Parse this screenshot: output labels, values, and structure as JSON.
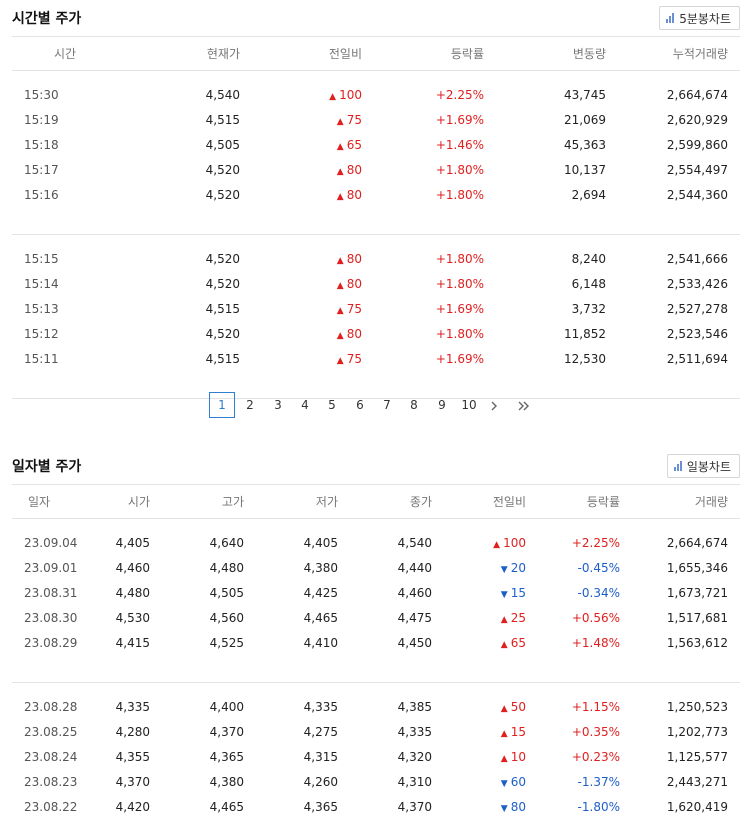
{
  "time_section": {
    "title": "시간별 주가",
    "chart_button": "5분봉차트",
    "headers": [
      "시간",
      "현재가",
      "전일비",
      "등락률",
      "변동량",
      "누적거래량"
    ],
    "groups": [
      [
        {
          "time": "15:30",
          "price": "4,540",
          "diff": "100",
          "dir": "up",
          "rate": "+2.25%",
          "vol": "43,745",
          "cum": "2,664,674"
        },
        {
          "time": "15:19",
          "price": "4,515",
          "diff": "75",
          "dir": "up",
          "rate": "+1.69%",
          "vol": "21,069",
          "cum": "2,620,929"
        },
        {
          "time": "15:18",
          "price": "4,505",
          "diff": "65",
          "dir": "up",
          "rate": "+1.46%",
          "vol": "45,363",
          "cum": "2,599,860"
        },
        {
          "time": "15:17",
          "price": "4,520",
          "diff": "80",
          "dir": "up",
          "rate": "+1.80%",
          "vol": "10,137",
          "cum": "2,554,497"
        },
        {
          "time": "15:16",
          "price": "4,520",
          "diff": "80",
          "dir": "up",
          "rate": "+1.80%",
          "vol": "2,694",
          "cum": "2,544,360"
        }
      ],
      [
        {
          "time": "15:15",
          "price": "4,520",
          "diff": "80",
          "dir": "up",
          "rate": "+1.80%",
          "vol": "8,240",
          "cum": "2,541,666"
        },
        {
          "time": "15:14",
          "price": "4,520",
          "diff": "80",
          "dir": "up",
          "rate": "+1.80%",
          "vol": "6,148",
          "cum": "2,533,426"
        },
        {
          "time": "15:13",
          "price": "4,515",
          "diff": "75",
          "dir": "up",
          "rate": "+1.69%",
          "vol": "3,732",
          "cum": "2,527,278"
        },
        {
          "time": "15:12",
          "price": "4,520",
          "diff": "80",
          "dir": "up",
          "rate": "+1.80%",
          "vol": "11,852",
          "cum": "2,523,546"
        },
        {
          "time": "15:11",
          "price": "4,515",
          "diff": "75",
          "dir": "up",
          "rate": "+1.69%",
          "vol": "12,530",
          "cum": "2,511,694"
        }
      ]
    ]
  },
  "pagination": {
    "pages": [
      "1",
      "2",
      "3",
      "4",
      "5",
      "6",
      "7",
      "8",
      "9",
      "10"
    ],
    "active": "1",
    "next_icon": "chevron-right-icon",
    "last_icon": "double-chevron-right-icon"
  },
  "daily_section": {
    "title": "일자별 주가",
    "chart_button": "일봉차트",
    "headers": [
      "일자",
      "시가",
      "고가",
      "저가",
      "종가",
      "전일비",
      "등락률",
      "거래량"
    ],
    "groups": [
      [
        {
          "date": "23.09.04",
          "open": "4,405",
          "high": "4,640",
          "low": "4,405",
          "close": "4,540",
          "diff": "100",
          "dir": "up",
          "rate": "+2.25%",
          "vol": "2,664,674"
        },
        {
          "date": "23.09.01",
          "open": "4,460",
          "high": "4,480",
          "low": "4,380",
          "close": "4,440",
          "diff": "20",
          "dir": "down",
          "rate": "-0.45%",
          "vol": "1,655,346"
        },
        {
          "date": "23.08.31",
          "open": "4,480",
          "high": "4,505",
          "low": "4,425",
          "close": "4,460",
          "diff": "15",
          "dir": "down",
          "rate": "-0.34%",
          "vol": "1,673,721"
        },
        {
          "date": "23.08.30",
          "open": "4,530",
          "high": "4,560",
          "low": "4,465",
          "close": "4,475",
          "diff": "25",
          "dir": "up",
          "rate": "+0.56%",
          "vol": "1,517,681"
        },
        {
          "date": "23.08.29",
          "open": "4,415",
          "high": "4,525",
          "low": "4,410",
          "close": "4,450",
          "diff": "65",
          "dir": "up",
          "rate": "+1.48%",
          "vol": "1,563,612"
        }
      ],
      [
        {
          "date": "23.08.28",
          "open": "4,335",
          "high": "4,400",
          "low": "4,335",
          "close": "4,385",
          "diff": "50",
          "dir": "up",
          "rate": "+1.15%",
          "vol": "1,250,523"
        },
        {
          "date": "23.08.25",
          "open": "4,280",
          "high": "4,370",
          "low": "4,275",
          "close": "4,335",
          "diff": "15",
          "dir": "up",
          "rate": "+0.35%",
          "vol": "1,202,773"
        },
        {
          "date": "23.08.24",
          "open": "4,355",
          "high": "4,365",
          "low": "4,315",
          "close": "4,320",
          "diff": "10",
          "dir": "up",
          "rate": "+0.23%",
          "vol": "1,125,577"
        },
        {
          "date": "23.08.23",
          "open": "4,370",
          "high": "4,380",
          "low": "4,260",
          "close": "4,310",
          "diff": "60",
          "dir": "down",
          "rate": "-1.37%",
          "vol": "2,443,271"
        },
        {
          "date": "23.08.22",
          "open": "4,420",
          "high": "4,465",
          "low": "4,365",
          "close": "4,370",
          "diff": "80",
          "dir": "down",
          "rate": "-1.80%",
          "vol": "1,620,419"
        }
      ]
    ]
  },
  "colors": {
    "up": "#e02020",
    "down": "#1d5fc9",
    "active_page": "#2d7fcf"
  }
}
